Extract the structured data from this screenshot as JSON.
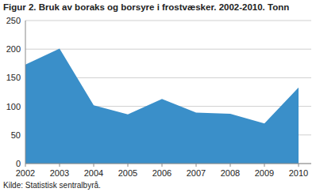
{
  "chart_data": {
    "type": "area",
    "title": "Figur 2. Bruk av boraks og borsyre i frostvæsker. 2002-2010. Tonn",
    "source": "Kilde: Statistisk sentralbyrå.",
    "categories": [
      "2002",
      "2003",
      "2004",
      "2005",
      "2006",
      "2007",
      "2008",
      "2009",
      "2010"
    ],
    "values": [
      173,
      201,
      102,
      86,
      113,
      89,
      87,
      70,
      133
    ],
    "color": "#3a8fc9",
    "ylim": [
      0,
      250
    ],
    "yticks": [
      0,
      50,
      100,
      150,
      200,
      250
    ],
    "grid": true
  }
}
